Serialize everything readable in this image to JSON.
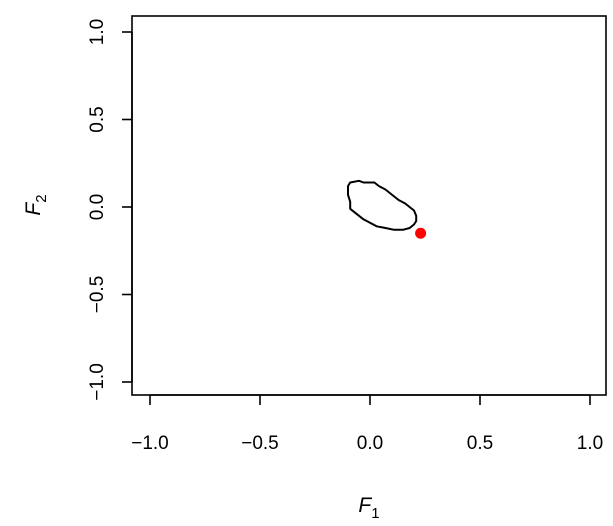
{
  "chart_data": {
    "type": "scatter",
    "title": "",
    "xlabel": {
      "base": "F",
      "sub": "1"
    },
    "ylabel": {
      "base": "F",
      "sub": "2"
    },
    "xlim": [
      -1.0,
      1.0
    ],
    "ylim": [
      -1.0,
      1.0
    ],
    "xticks": [
      {
        "value": -1.0,
        "label": "−1.0"
      },
      {
        "value": -0.5,
        "label": "−0.5"
      },
      {
        "value": 0.0,
        "label": "0.0"
      },
      {
        "value": 0.5,
        "label": "0.5"
      },
      {
        "value": 1.0,
        "label": "1.0"
      }
    ],
    "yticks": [
      {
        "value": -1.0,
        "label": "−1.0"
      },
      {
        "value": -0.5,
        "label": "−0.5"
      },
      {
        "value": 0.0,
        "label": "0.0"
      },
      {
        "value": 0.5,
        "label": "0.5"
      },
      {
        "value": 1.0,
        "label": "1.0"
      }
    ],
    "grid": false,
    "series": [
      {
        "kind": "contour",
        "color": "#000000",
        "points": [
          [
            -0.09,
            0.14
          ],
          [
            -0.05,
            0.15
          ],
          [
            -0.03,
            0.14
          ],
          [
            0.02,
            0.14
          ],
          [
            0.04,
            0.12
          ],
          [
            0.07,
            0.1
          ],
          [
            0.09,
            0.08
          ],
          [
            0.11,
            0.06
          ],
          [
            0.13,
            0.04
          ],
          [
            0.16,
            0.02
          ],
          [
            0.18,
            0.0
          ],
          [
            0.2,
            -0.02
          ],
          [
            0.21,
            -0.05
          ],
          [
            0.21,
            -0.08
          ],
          [
            0.2,
            -0.1
          ],
          [
            0.18,
            -0.12
          ],
          [
            0.15,
            -0.13
          ],
          [
            0.11,
            -0.13
          ],
          [
            0.07,
            -0.12
          ],
          [
            0.03,
            -0.11
          ],
          [
            0.0,
            -0.09
          ],
          [
            -0.03,
            -0.07
          ],
          [
            -0.05,
            -0.05
          ],
          [
            -0.07,
            -0.03
          ],
          [
            -0.09,
            -0.01
          ],
          [
            -0.09,
            0.03
          ],
          [
            -0.1,
            0.07
          ],
          [
            -0.1,
            0.12
          ]
        ]
      },
      {
        "kind": "point",
        "color": "#ff0000",
        "points": [
          [
            0.23,
            -0.15
          ]
        ]
      }
    ]
  }
}
